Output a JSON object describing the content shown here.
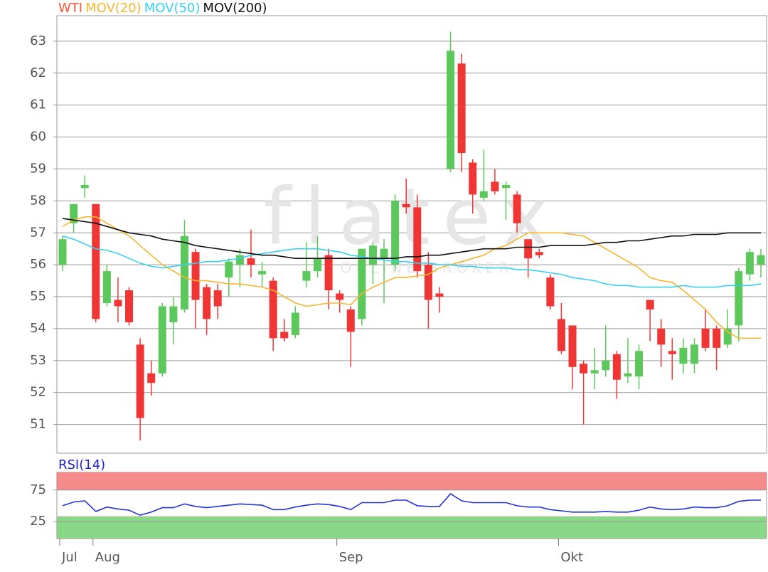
{
  "chart_data": [
    {
      "type": "candlestick",
      "categories": [
        "Jul",
        null,
        null,
        "Aug",
        null,
        null,
        null,
        null,
        null,
        null,
        null,
        null,
        null,
        null,
        null,
        null,
        null,
        null,
        null,
        null,
        null,
        null,
        null,
        null,
        null,
        "Sep",
        null,
        null,
        null,
        null,
        null,
        null,
        null,
        null,
        null,
        null,
        null,
        null,
        null,
        null,
        null,
        null,
        null,
        null,
        null,
        "Okt",
        null,
        null,
        null,
        null,
        null,
        null,
        null,
        null,
        null,
        null,
        null,
        null,
        null,
        null,
        null,
        null,
        null,
        null
      ],
      "watermark": "flatex",
      "watermark_sub": "ONLINE BROKER",
      "ylim": [
        50.1,
        63.8
      ],
      "yticks": [
        51,
        52,
        53,
        54,
        55,
        56,
        57,
        58,
        59,
        60,
        61,
        62,
        63
      ],
      "grid": true,
      "series": [
        {
          "name": "WTI",
          "type": "candlestick",
          "color": "#ff5533",
          "up_color": "#5cc85c",
          "down_color": "#f03535",
          "open": [
            56.0,
            57.3,
            58.4,
            57.9,
            54.8,
            54.9,
            55.2,
            53.5,
            52.6,
            52.6,
            54.2,
            54.6,
            56.4,
            55.3,
            55.2,
            55.6,
            56.0,
            56.2,
            55.7,
            55.5,
            53.9,
            53.8,
            55.5,
            55.8,
            56.3,
            55.1,
            54.6,
            54.3,
            56.0,
            56.2,
            56.0,
            57.9,
            57.8,
            56.0,
            55.1,
            59.0,
            62.3,
            59.2,
            58.1,
            58.6,
            58.4,
            58.2,
            56.8,
            56.4,
            55.6,
            54.3,
            54.1,
            52.9,
            52.6,
            52.7,
            53.2,
            52.5,
            52.5,
            54.9,
            54.0,
            53.3,
            52.9,
            52.9,
            54.0,
            54.0,
            53.5,
            54.1,
            55.7,
            56.0
          ],
          "high": [
            56.9,
            57.9,
            58.8,
            57.9,
            56.0,
            55.6,
            55.3,
            53.7,
            53.0,
            54.8,
            55.0,
            57.4,
            56.5,
            55.4,
            55.4,
            56.2,
            56.5,
            57.1,
            56.1,
            55.6,
            54.3,
            54.7,
            56.7,
            56.9,
            56.5,
            55.2,
            54.7,
            56.5,
            56.7,
            56.8,
            58.2,
            58.7,
            58.2,
            56.4,
            55.3,
            63.3,
            62.6,
            59.3,
            59.6,
            59.0,
            58.6,
            58.3,
            56.8,
            56.5,
            55.7,
            54.8,
            54.1,
            53.0,
            53.4,
            54.1,
            53.3,
            53.7,
            53.5,
            54.9,
            54.3,
            53.7,
            53.7,
            53.7,
            54.6,
            54.1,
            54.6,
            55.9,
            56.5,
            56.5
          ],
          "low": [
            55.8,
            57.0,
            58.1,
            54.2,
            54.7,
            54.2,
            54.1,
            50.5,
            51.9,
            52.5,
            53.5,
            54.5,
            54.0,
            53.8,
            54.3,
            55.0,
            55.3,
            55.6,
            55.3,
            53.3,
            53.6,
            53.7,
            55.3,
            55.6,
            54.6,
            54.5,
            52.8,
            54.1,
            55.4,
            54.8,
            55.8,
            57.6,
            55.6,
            54.0,
            54.5,
            58.9,
            58.9,
            57.6,
            58.0,
            58.2,
            57.4,
            57.0,
            55.6,
            56.2,
            54.6,
            53.2,
            52.1,
            51.0,
            52.1,
            52.5,
            51.8,
            52.3,
            52.1,
            53.6,
            52.8,
            52.4,
            52.6,
            52.6,
            53.3,
            52.7,
            53.4,
            53.6,
            55.5,
            55.6
          ],
          "close": [
            56.8,
            57.9,
            58.5,
            54.3,
            55.8,
            54.7,
            54.2,
            51.2,
            52.3,
            54.7,
            54.7,
            56.9,
            54.9,
            54.3,
            54.7,
            56.1,
            56.3,
            56.0,
            55.8,
            53.7,
            53.7,
            54.5,
            55.8,
            56.2,
            55.2,
            54.9,
            53.9,
            56.5,
            56.6,
            56.5,
            58.0,
            57.8,
            55.8,
            54.9,
            55.0,
            62.7,
            59.5,
            58.2,
            58.3,
            58.3,
            58.5,
            57.3,
            56.2,
            56.3,
            54.7,
            53.3,
            52.8,
            52.6,
            52.7,
            53.0,
            52.4,
            52.6,
            53.3,
            54.6,
            53.5,
            53.2,
            53.4,
            53.5,
            53.4,
            53.4,
            54.0,
            55.8,
            56.4,
            56.3
          ]
        },
        {
          "name": "MOV(20)",
          "type": "line",
          "color": "#f5b630",
          "values": [
            57.2,
            57.4,
            57.5,
            57.5,
            57.3,
            57.1,
            56.9,
            56.6,
            56.3,
            56.0,
            55.8,
            55.6,
            55.5,
            55.5,
            55.45,
            55.4,
            55.4,
            55.35,
            55.3,
            55.2,
            55.0,
            54.8,
            54.7,
            54.75,
            54.8,
            54.8,
            54.75,
            55.1,
            55.3,
            55.45,
            55.6,
            55.6,
            55.65,
            55.7,
            55.9,
            56.0,
            56.1,
            56.2,
            56.3,
            56.5,
            56.6,
            56.8,
            57.0,
            57.0,
            57.0,
            57.0,
            56.95,
            56.9,
            56.7,
            56.5,
            56.3,
            56.1,
            55.9,
            55.6,
            55.5,
            55.45,
            55.2,
            54.9,
            54.6,
            54.2,
            53.9,
            53.7,
            53.7,
            53.7
          ]
        },
        {
          "name": "MOV(50)",
          "type": "line",
          "color": "#38d0f0",
          "values": [
            56.9,
            56.8,
            56.65,
            56.5,
            56.45,
            56.35,
            56.2,
            56.05,
            55.95,
            55.9,
            55.95,
            56.0,
            56.05,
            56.1,
            56.1,
            56.15,
            56.2,
            56.3,
            56.35,
            56.4,
            56.45,
            56.5,
            56.5,
            56.5,
            56.45,
            56.4,
            56.3,
            56.25,
            56.2,
            56.15,
            56.1,
            56.1,
            56.05,
            56.05,
            56.0,
            56.0,
            55.95,
            55.95,
            55.9,
            55.9,
            55.9,
            55.85,
            55.85,
            55.8,
            55.75,
            55.7,
            55.6,
            55.55,
            55.5,
            55.4,
            55.35,
            55.35,
            55.3,
            55.3,
            55.3,
            55.3,
            55.35,
            55.3,
            55.3,
            55.3,
            55.35,
            55.35,
            55.35,
            55.4
          ]
        },
        {
          "name": "MOV(200)",
          "type": "line",
          "color": "#111111",
          "values": [
            57.45,
            57.4,
            57.35,
            57.3,
            57.2,
            57.1,
            57.0,
            56.95,
            56.9,
            56.8,
            56.75,
            56.7,
            56.6,
            56.55,
            56.5,
            56.45,
            56.4,
            56.35,
            56.3,
            56.3,
            56.25,
            56.2,
            56.2,
            56.2,
            56.2,
            56.2,
            56.2,
            56.2,
            56.2,
            56.2,
            56.2,
            56.25,
            56.25,
            56.3,
            56.3,
            56.35,
            56.4,
            56.45,
            56.5,
            56.5,
            56.5,
            56.55,
            56.55,
            56.55,
            56.6,
            56.6,
            56.6,
            56.6,
            56.65,
            56.7,
            56.7,
            56.75,
            56.75,
            56.8,
            56.85,
            56.9,
            56.9,
            56.95,
            56.95,
            56.95,
            57.0,
            57.0,
            57.0,
            57.0
          ]
        }
      ]
    },
    {
      "type": "line",
      "title": "RSI(14)",
      "title_color": "#2222cc",
      "ylim": [
        -2,
        103
      ],
      "yticks": [
        25,
        75
      ],
      "grid": true,
      "zones": [
        {
          "from": 75,
          "to": 103,
          "color": "#f48a8a"
        },
        {
          "from": -2,
          "to": 33,
          "color": "#88d888"
        }
      ],
      "series": [
        {
          "name": "RSI(14)",
          "color": "#2233dd",
          "values": [
            50,
            56,
            58,
            41,
            48,
            45,
            43,
            35,
            40,
            47,
            47,
            53,
            49,
            47,
            49,
            51,
            53,
            52,
            51,
            44,
            44,
            48,
            51,
            53,
            52,
            49,
            44,
            55,
            55,
            55,
            59,
            59,
            50,
            49,
            49,
            69,
            58,
            55,
            55,
            55,
            55,
            50,
            48,
            48,
            44,
            42,
            40,
            40,
            40,
            41,
            40,
            40,
            43,
            48,
            45,
            44,
            45,
            48,
            47,
            47,
            50,
            57,
            59,
            59
          ]
        }
      ]
    }
  ]
}
